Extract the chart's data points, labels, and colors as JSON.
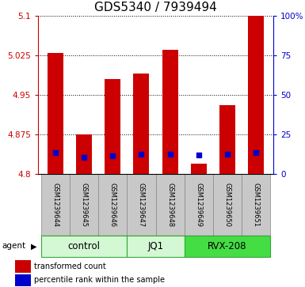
{
  "title": "GDS5340 / 7939494",
  "samples": [
    "GSM1239644",
    "GSM1239645",
    "GSM1239646",
    "GSM1239647",
    "GSM1239648",
    "GSM1239649",
    "GSM1239650",
    "GSM1239651"
  ],
  "red_values": [
    5.03,
    4.875,
    4.98,
    4.99,
    5.035,
    4.82,
    4.93,
    5.1
  ],
  "blue_values": [
    4.84,
    4.832,
    4.835,
    4.838,
    4.838,
    4.836,
    4.838,
    4.84
  ],
  "ylim_left": [
    4.8,
    5.1
  ],
  "ylim_right": [
    0,
    100
  ],
  "yticks_left": [
    4.8,
    4.875,
    4.95,
    5.025,
    5.1
  ],
  "yticks_right": [
    0,
    25,
    50,
    75,
    100
  ],
  "ytick_labels_left": [
    "4.8",
    "4.875",
    "4.95",
    "5.025",
    "5.1"
  ],
  "ytick_labels_right": [
    "0",
    "25",
    "50",
    "75",
    "100%"
  ],
  "groups": [
    {
      "name": "control",
      "indices": [
        0,
        1,
        2
      ],
      "color": "#d4f7d4"
    },
    {
      "name": "JQ1",
      "indices": [
        3,
        4
      ],
      "color": "#d4f7d4"
    },
    {
      "name": "RVX-208",
      "indices": [
        5,
        6,
        7
      ],
      "color": "#44dd44"
    }
  ],
  "bar_color": "#cc0000",
  "blue_color": "#0000cc",
  "base_value": 4.8,
  "bar_width": 0.55,
  "blue_marker_size": 5,
  "grid_color": "#000000",
  "bg_color": "#ffffff",
  "xlabel_area_bg": "#c8c8c8",
  "agent_label": "agent",
  "legend_red_label": "transformed count",
  "legend_blue_label": "percentile rank within the sample",
  "title_fontsize": 11,
  "tick_fontsize": 7.5,
  "sample_fontsize": 6,
  "group_fontsize": 8.5,
  "legend_fontsize": 7
}
